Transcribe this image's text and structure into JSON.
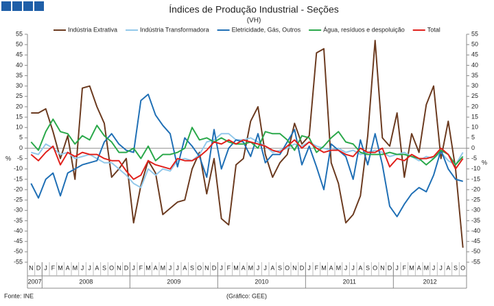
{
  "chart_data": {
    "type": "line",
    "title": "Índices de Produção Industrial - Seções",
    "subtitle": "(VH)",
    "y_label": "%",
    "y2_label": "%",
    "source": "Fonte: INE",
    "credit": "(Gráfico: GEE)",
    "categories": [
      "N",
      "D",
      "J",
      "F",
      "M",
      "A",
      "M",
      "J",
      "J",
      "A",
      "S",
      "O",
      "N",
      "D",
      "J",
      "F",
      "M",
      "A",
      "M",
      "J",
      "J",
      "A",
      "S",
      "O",
      "N",
      "D",
      "J",
      "F",
      "M",
      "A",
      "M",
      "J",
      "J",
      "A",
      "S",
      "O",
      "N",
      "D",
      "J",
      "F",
      "M",
      "A",
      "M",
      "J",
      "J",
      "A",
      "S",
      "O",
      "N",
      "D",
      "J",
      "F",
      "M",
      "A",
      "M",
      "J",
      "J",
      "A",
      "S",
      "O"
    ],
    "years": [
      "2007",
      "2008",
      "2009",
      "2010",
      "2011",
      "2012"
    ],
    "ylim": [
      -55,
      55
    ],
    "yticks": [
      -55,
      -50,
      -45,
      -40,
      -35,
      -30,
      -25,
      -20,
      -15,
      -10,
      -5,
      0,
      5,
      10,
      15,
      20,
      25,
      30,
      35,
      40,
      45,
      50,
      55
    ],
    "y2lim": [
      -55,
      55
    ],
    "y2ticks": [
      -55,
      -50,
      -45,
      -40,
      -35,
      -30,
      -25,
      -20,
      -15,
      -10,
      -5,
      0,
      5,
      10,
      15,
      20,
      25,
      30,
      35,
      40,
      45,
      50,
      55
    ],
    "series": [
      {
        "name": "Indústria Extrativa",
        "color": "#6b3a1f",
        "values": [
          17,
          17,
          19,
          8,
          -5,
          6,
          -15,
          29,
          30,
          20,
          12,
          -14,
          -10,
          -5,
          -36,
          -18,
          -6,
          -12,
          -32,
          -29,
          -26,
          -25,
          -10,
          -2,
          -22,
          -5,
          -34,
          -37,
          -8,
          -5,
          13,
          20,
          -3,
          -14,
          -7,
          -3,
          12,
          2,
          6,
          46,
          48,
          -7,
          -17,
          -36,
          -32,
          -23,
          6,
          52,
          5,
          1,
          17,
          -14,
          7,
          -2,
          21,
          30,
          -5,
          13,
          -10,
          -48
        ]
      },
      {
        "name": "Indústria Transformadora",
        "color": "#92c8ea",
        "values": [
          -2,
          -3,
          2,
          0,
          -3,
          -2,
          -5,
          -4,
          -3,
          -5,
          -7,
          -7,
          -10,
          -13,
          -17,
          -19,
          -10,
          -13,
          -10,
          -11,
          -6,
          -5,
          -6,
          -3,
          3,
          4,
          7,
          7,
          4,
          4,
          5,
          3,
          1,
          -2,
          -1,
          0,
          2,
          1,
          3,
          1,
          0,
          -1,
          0,
          -2,
          -1,
          -3,
          -2,
          -1,
          -2,
          -4,
          -3,
          -2,
          -4,
          -6,
          -4,
          -5,
          -2,
          -6,
          -8,
          -2
        ]
      },
      {
        "name": "Eletricidade, Gás, Outros",
        "color": "#1f6fb5",
        "values": [
          -17,
          -24,
          -15,
          -12,
          -23,
          -12,
          -10,
          -8,
          -7,
          -6,
          3,
          7,
          2,
          -1,
          -2,
          23,
          26,
          16,
          11,
          7,
          -9,
          5,
          1,
          -4,
          -14,
          9,
          -10,
          0,
          4,
          3,
          -4,
          7,
          -7,
          -3,
          -3,
          3,
          9,
          -8,
          1,
          -9,
          -20,
          2,
          -1,
          -4,
          -15,
          4,
          -8,
          7,
          -8,
          -28,
          -33,
          -27,
          -22,
          -19,
          -21,
          -13,
          -1,
          -10,
          -15,
          -16
        ]
      },
      {
        "name": "Água, resíduos e despoluição",
        "color": "#2aa84a",
        "values": [
          3,
          -1,
          8,
          14,
          8,
          7,
          2,
          6,
          4,
          11,
          6,
          3,
          -2,
          -2,
          0,
          -5,
          1,
          -6,
          -3,
          -3,
          -2,
          0,
          10,
          4,
          5,
          3,
          5,
          3,
          2,
          2,
          3,
          0,
          8,
          7,
          7,
          4,
          -1,
          6,
          5,
          -2,
          1,
          5,
          8,
          3,
          2,
          -2,
          -3,
          -3,
          -3,
          -2,
          -3,
          -3,
          -4,
          -5,
          -8,
          -5,
          -1,
          -3,
          -8,
          -4
        ]
      },
      {
        "name": "Total",
        "color": "#e0201b",
        "values": [
          -3,
          -6,
          -2,
          1,
          -8,
          -2,
          -4,
          -2,
          -3,
          -3,
          -5,
          -6,
          -6,
          -11,
          -15,
          -13,
          -6,
          -8,
          -9,
          -10,
          -5,
          -6,
          -6,
          -4,
          -1,
          3,
          2,
          4,
          2,
          4,
          3,
          2,
          1,
          -1,
          -2,
          1,
          4,
          0,
          3,
          0,
          -2,
          -1,
          -1,
          -3,
          -4,
          0,
          -2,
          -2,
          0,
          -9,
          -5,
          -6,
          -3,
          -5,
          -5,
          -4,
          0,
          -3,
          -10,
          -5
        ]
      }
    ]
  }
}
